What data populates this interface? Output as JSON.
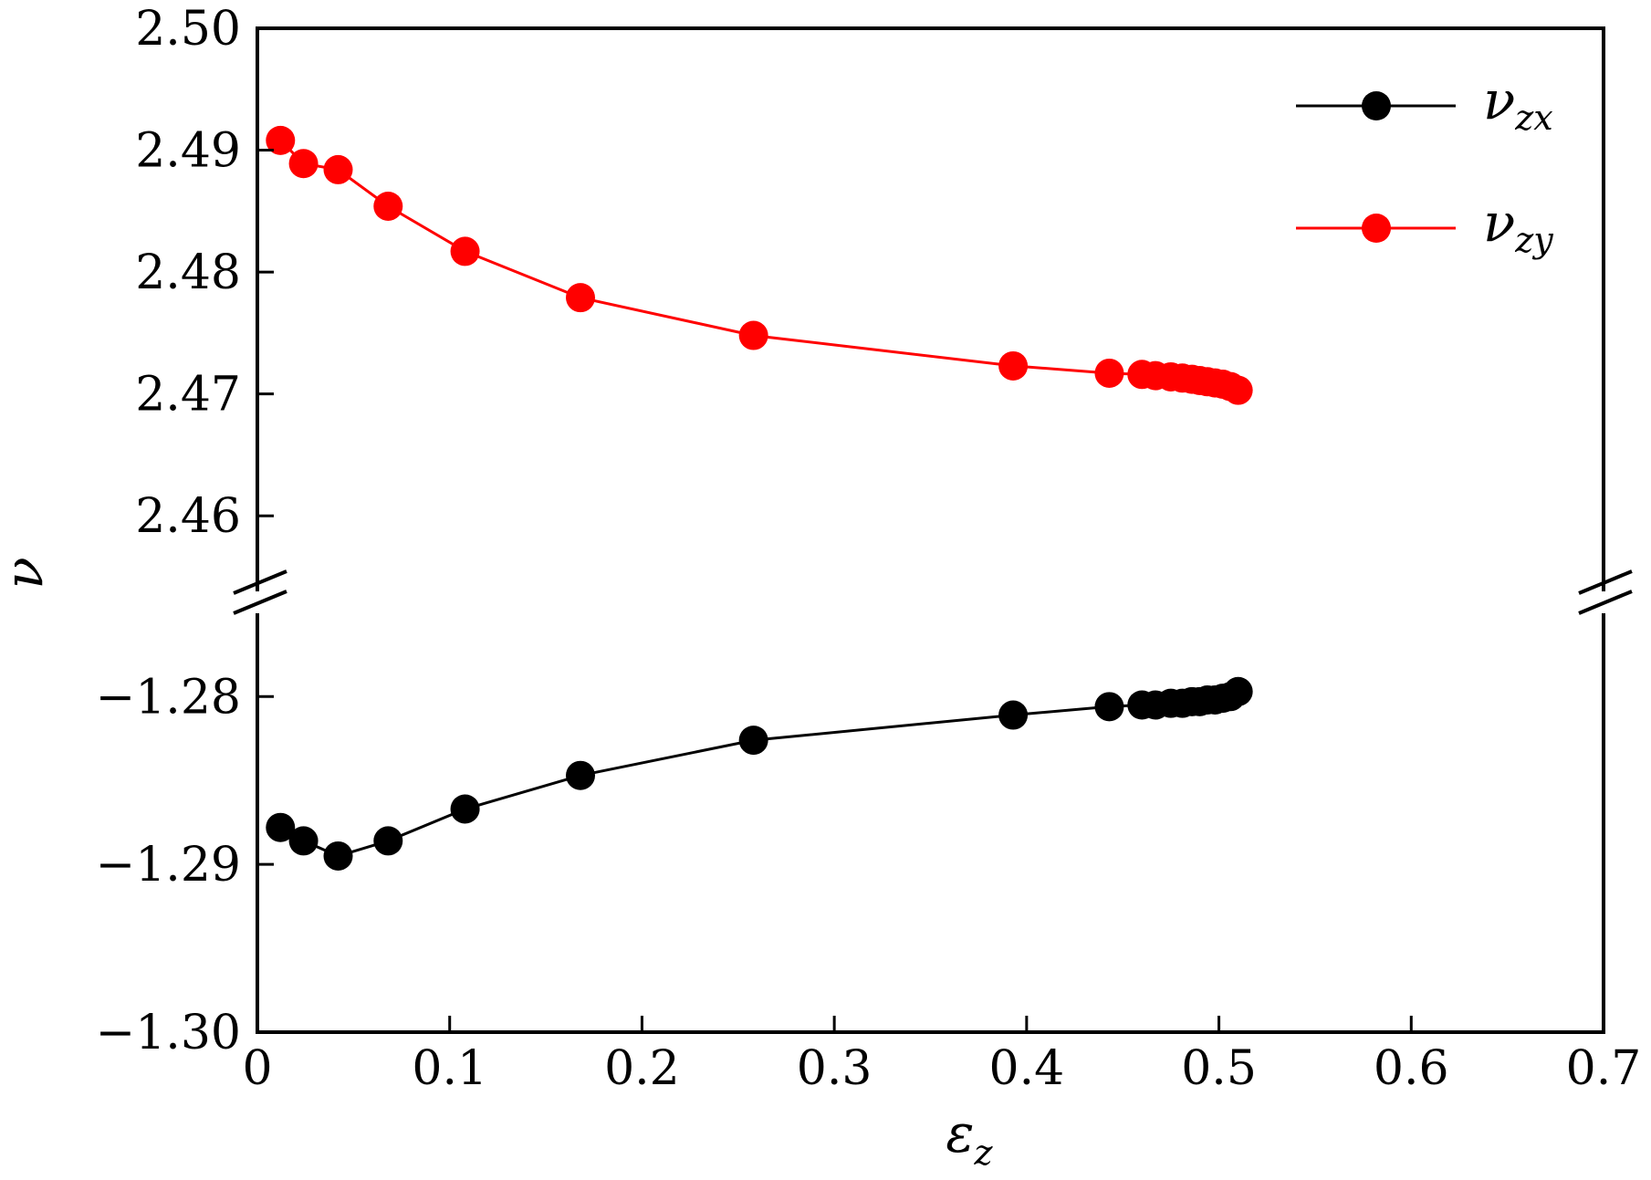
{
  "chart_data": {
    "type": "line",
    "xlabel": "ε",
    "xlabel_sub": "z",
    "ylabel": "ν",
    "xlim": [
      0,
      0.7
    ],
    "x_ticks": [
      0,
      0.1,
      0.2,
      0.3,
      0.4,
      0.5,
      0.6,
      0.7
    ],
    "x_tick_labels": [
      "0",
      "0.1",
      "0.2",
      "0.3",
      "0.4",
      "0.5",
      "0.6",
      "0.7"
    ],
    "broken_y_axis": true,
    "upper_ylim": [
      2.455,
      2.5
    ],
    "upper_y_ticks": [
      2.46,
      2.47,
      2.48,
      2.49,
      2.5
    ],
    "upper_y_tick_labels": [
      "2.46",
      "2.47",
      "2.48",
      "2.49",
      "2.50"
    ],
    "lower_ylim": [
      -1.3,
      -1.274
    ],
    "lower_y_ticks": [
      -1.3,
      -1.29,
      -1.28
    ],
    "lower_y_tick_labels": [
      "−1.30",
      "−1.29",
      "−1.28"
    ],
    "legend_position": "top-right",
    "grid": false,
    "series": [
      {
        "name": "ν",
        "name_sub": "zx",
        "color": "#000000",
        "panel": "lower",
        "x": [
          0.012,
          0.024,
          0.042,
          0.068,
          0.108,
          0.168,
          0.258,
          0.393,
          0.443,
          0.46,
          0.467,
          0.475,
          0.481,
          0.486,
          0.49,
          0.494,
          0.498,
          0.502,
          0.506,
          0.51
        ],
        "y": [
          -1.2878,
          -1.2886,
          -1.2895,
          -1.2886,
          -1.2867,
          -1.2847,
          -1.2826,
          -1.2811,
          -1.2806,
          -1.2805,
          -1.2805,
          -1.2804,
          -1.2804,
          -1.2803,
          -1.2803,
          -1.2802,
          -1.2802,
          -1.2801,
          -1.28,
          -1.2797
        ]
      },
      {
        "name": "ν",
        "name_sub": "zy",
        "color": "#ff0000",
        "panel": "upper",
        "x": [
          0.012,
          0.024,
          0.042,
          0.068,
          0.108,
          0.168,
          0.258,
          0.393,
          0.443,
          0.46,
          0.467,
          0.475,
          0.481,
          0.486,
          0.49,
          0.494,
          0.498,
          0.502,
          0.506,
          0.51
        ],
        "y": [
          2.4908,
          2.4889,
          2.4884,
          2.4854,
          2.4817,
          2.4779,
          2.4748,
          2.4723,
          2.4717,
          2.4716,
          2.4715,
          2.4714,
          2.4713,
          2.4712,
          2.4711,
          2.471,
          2.4709,
          2.4708,
          2.4706,
          2.4703
        ]
      }
    ]
  }
}
